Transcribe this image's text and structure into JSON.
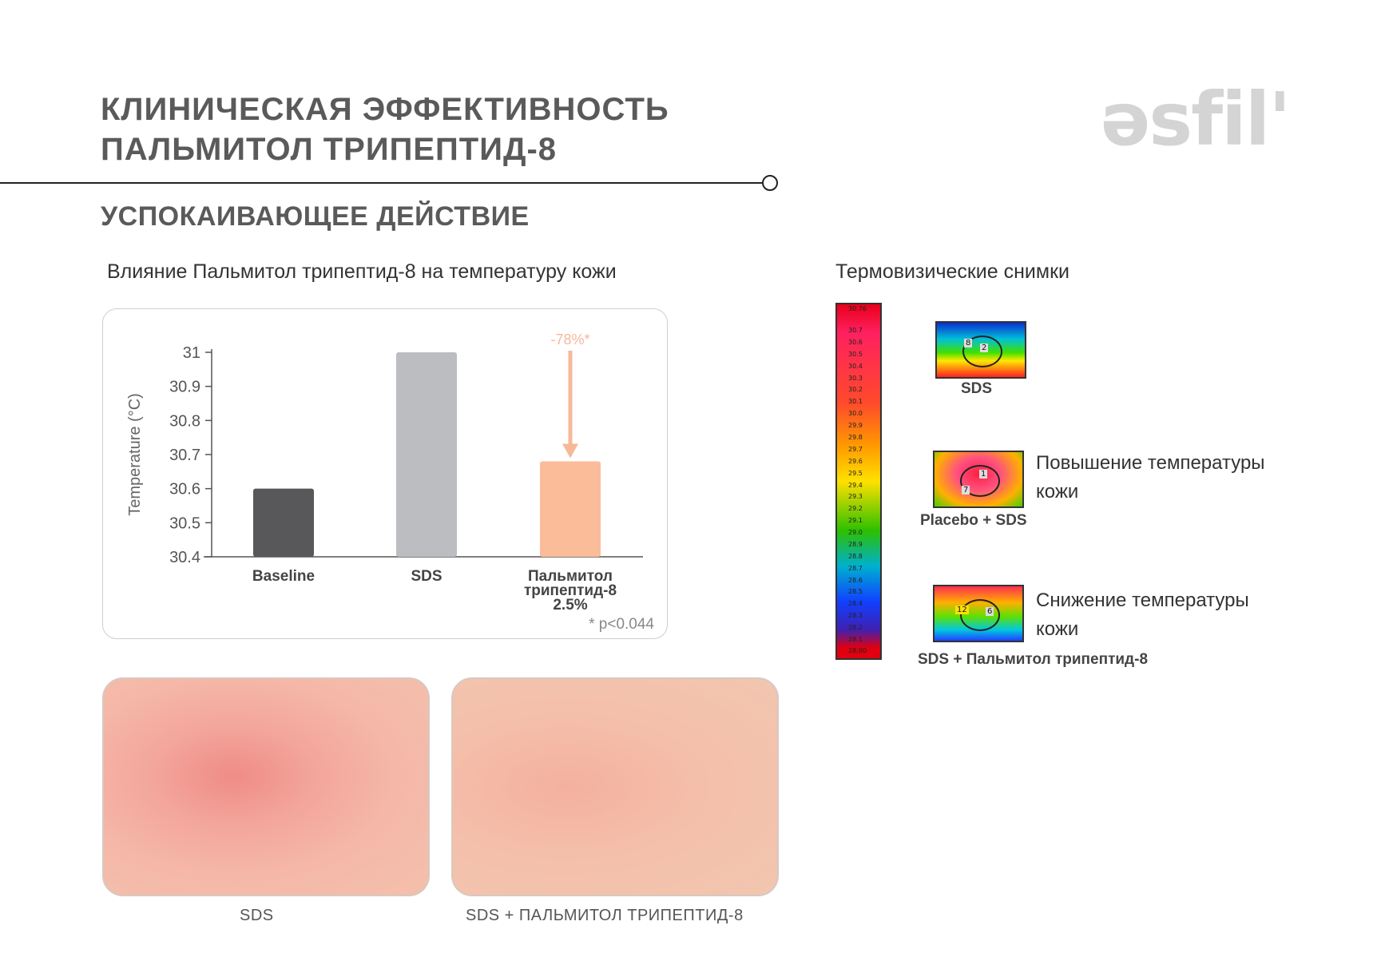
{
  "header": {
    "title_line1": "КЛИНИЧЕСКАЯ ЭФФЕКТИВНОСТЬ",
    "title_line2": "ПАЛЬМИТОЛ ТРИПЕПТИД-8",
    "logo": "əsfil'"
  },
  "section_title": "УСПОКАИВАЮЩЕЕ ДЕЙСТВИЕ",
  "chart_caption": "Влияние Пальмитол трипептид-8 на температуру кожи",
  "chart_data": {
    "type": "bar",
    "ylabel": "Temperature (°C)",
    "ylim": [
      30.4,
      31
    ],
    "yticks": [
      "30.4",
      "30.5",
      "30.6",
      "30.7",
      "30.8",
      "30.9",
      "31"
    ],
    "categories": [
      "Baseline",
      "SDS",
      "Пальмитол трипептид-8 2.5%"
    ],
    "category_lines": [
      [
        "Baseline"
      ],
      [
        "SDS"
      ],
      [
        "Пальмитол",
        "трипептид-8",
        "2.5%"
      ]
    ],
    "values": [
      30.6,
      31.0,
      30.68
    ],
    "colors": [
      "#58585a",
      "#bcbdc1",
      "#fbbc9a"
    ],
    "annotation": "-78%*",
    "annotation_color": "#f7b89a",
    "footnote": "* p<0.044",
    "grid": false,
    "legend": "none"
  },
  "photos": {
    "left_label": "SDS",
    "right_label": "SDS + ПАЛЬМИТОЛ ТРИПЕПТИД-8"
  },
  "thermo": {
    "title": "Термовизические снимки",
    "scale_top": "30.76",
    "scale_bottom": "28.00",
    "scale_ticks": [
      "30.7",
      "30.6",
      "30.5",
      "30.4",
      "30.3",
      "30.2",
      "30.1",
      "30.0",
      "29.9",
      "29.8",
      "29.7",
      "29.6",
      "29.5",
      "29.4",
      "29.3",
      "29.2",
      "29.1",
      "29.0",
      "28.9",
      "28.8",
      "28.7",
      "28.6",
      "28.5",
      "28.4",
      "28.3",
      "28.2",
      "28.1"
    ],
    "images": [
      {
        "label": "SDS",
        "nums": [
          "8",
          "2"
        ],
        "desc": ""
      },
      {
        "label": "Placebo + SDS",
        "nums": [
          "1",
          "7"
        ],
        "desc_line1": "Повышение температуры",
        "desc_line2": "кожи"
      },
      {
        "label": "SDS + Пальмитол трипептид-8",
        "nums": [
          "12",
          "6"
        ],
        "desc_line1": "Снижение температуры",
        "desc_line2": "кожи"
      }
    ]
  }
}
